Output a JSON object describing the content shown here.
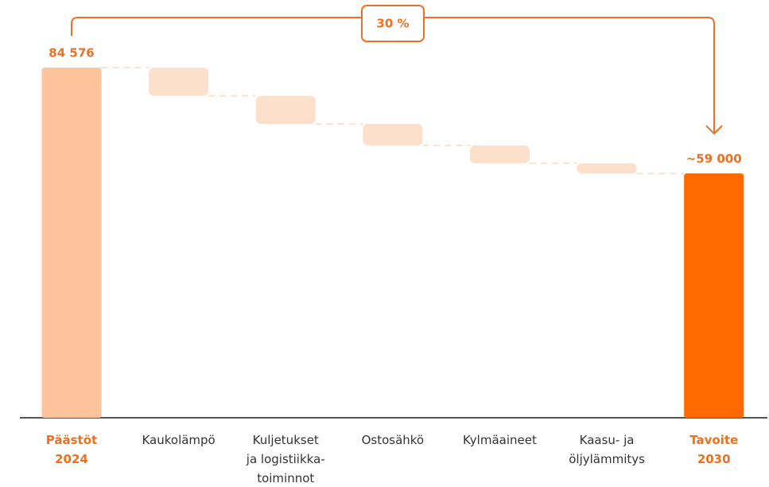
{
  "chart_data": {
    "type": "waterfall",
    "categories": [
      "Päästöt\n2024",
      "Kaukolämpö",
      "Kuljetukset\nja logistiikka-\ntoiminnot",
      "Ostosähkö",
      "Kylmäaineet",
      "Kaasu- ja\nöljylämmitys",
      "Tavoite\n2030"
    ],
    "values": [
      84576,
      -6800,
      -6800,
      -5200,
      -4300,
      -2500,
      59000
    ],
    "value_labels": [
      "84 576",
      null,
      null,
      null,
      null,
      null,
      "~59 000"
    ],
    "colors": [
      "#fdc49b",
      "#fde0cc",
      "#fde0cc",
      "#fde0cc",
      "#fde0cc",
      "#fde0cc",
      "#ff6a00"
    ],
    "ylim": [
      0,
      90000
    ],
    "annotation": "30 %"
  }
}
